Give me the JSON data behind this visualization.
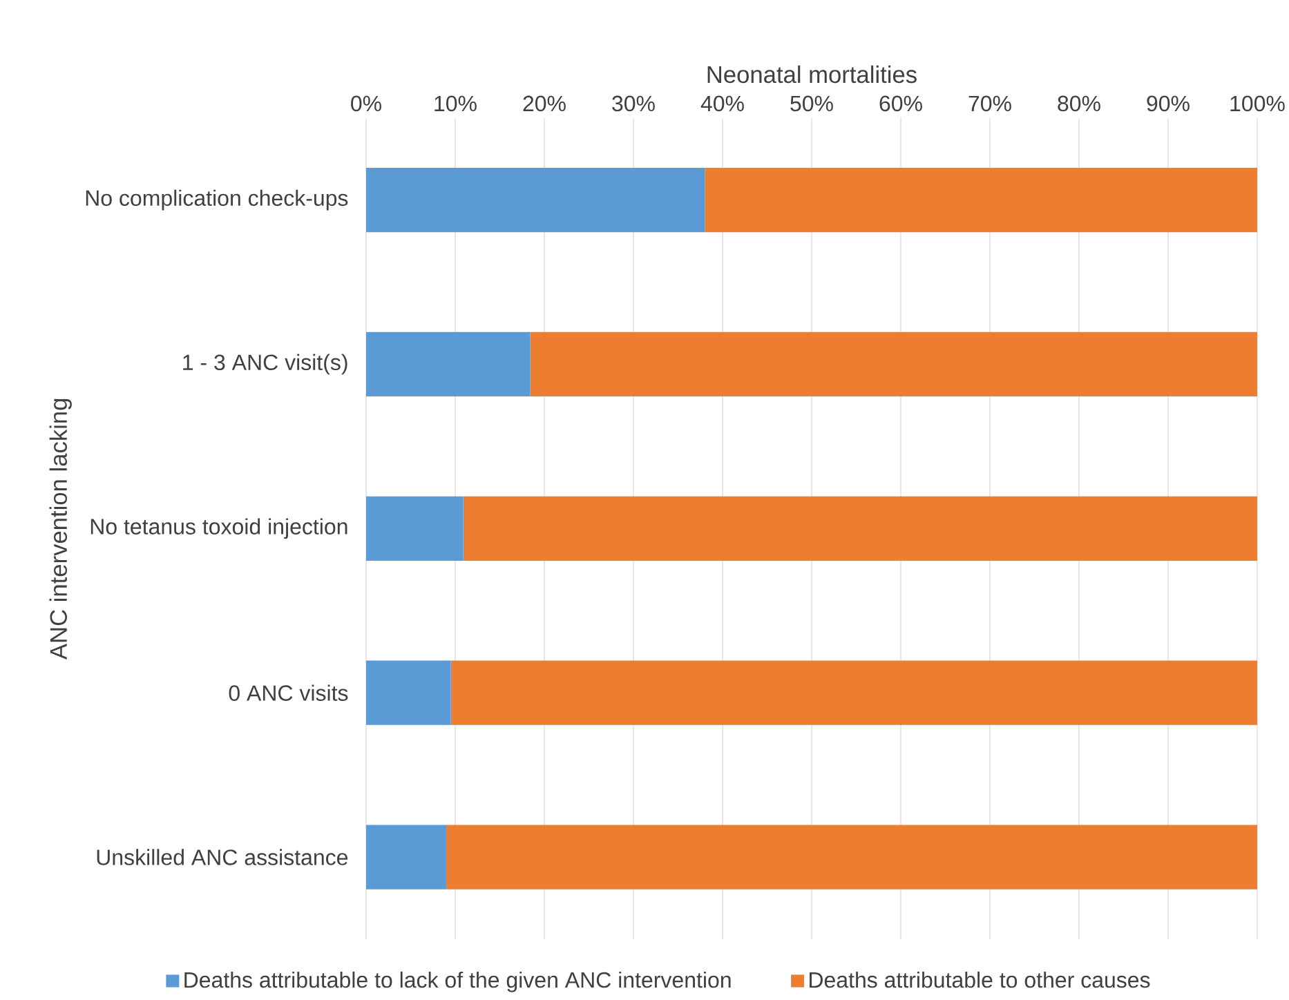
{
  "chart_data": {
    "type": "bar",
    "orientation": "horizontal",
    "stacked": true,
    "xlabel": "Neonatal mortalities",
    "ylabel": "ANC intervention lacking",
    "categories": [
      "No complication check-ups",
      "1 - 3 ANC visit(s)",
      "No tetanus toxoid injection",
      "0 ANC visits",
      "Unskilled ANC assistance"
    ],
    "series": [
      {
        "name": "Deaths attributable to lack of the given ANC intervention",
        "color": "#5b9bd5",
        "values": [
          38,
          18.4,
          10.9,
          9.5,
          9
        ]
      },
      {
        "name": "Deaths attributable to other causes",
        "color": "#ed7d31",
        "values": [
          62,
          81.6,
          89.1,
          90.5,
          91
        ]
      }
    ],
    "xlim": [
      0,
      100
    ],
    "xticks": [
      {
        "value": 0,
        "label": "0%"
      },
      {
        "value": 10,
        "label": "10%"
      },
      {
        "value": 20,
        "label": "20%"
      },
      {
        "value": 30,
        "label": "30%"
      },
      {
        "value": 40,
        "label": "40%"
      },
      {
        "value": 50,
        "label": "50%"
      },
      {
        "value": 60,
        "label": "60%"
      },
      {
        "value": 70,
        "label": "70%"
      },
      {
        "value": 80,
        "label": "80%"
      },
      {
        "value": 90,
        "label": "90%"
      },
      {
        "value": 100,
        "label": "100%"
      }
    ],
    "grid": "x",
    "legend": "bottom"
  }
}
